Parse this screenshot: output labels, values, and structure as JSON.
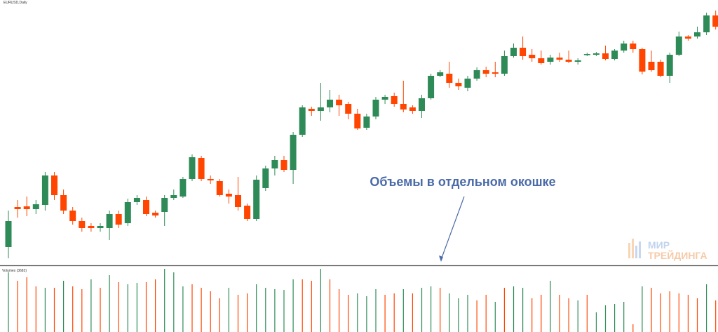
{
  "chart_data": [
    {
      "type": "candlestick",
      "title": "EURUSD,Daily",
      "annotation": "Объемы в отдельном окошке",
      "logo": [
        "МИР",
        "ТРЕЙДИНГА"
      ],
      "up_color": "#2e8b57",
      "down_color": "#ff4500",
      "ylim": [
        0,
        380
      ],
      "open": [
        28,
        85,
        86,
        82,
        88,
        130,
        102,
        80,
        65,
        58,
        55,
        55,
        75,
        62,
        92,
        95,
        77,
        78,
        98,
        100,
        125,
        155,
        125,
        122,
        104,
        102,
        87,
        68,
        112,
        140,
        152,
        138,
        188,
        225,
        222,
        227,
        238,
        232,
        218,
        198,
        214,
        238,
        243,
        232,
        227,
        222,
        240,
        272,
        275,
        262,
        255,
        268,
        280,
        277,
        275,
        300,
        312,
        302,
        297,
        292,
        298,
        295,
        292,
        302,
        302,
        304,
        296,
        308,
        318,
        310,
        292,
        292,
        272,
        302,
        328,
        328,
        334,
        358
      ],
      "close": [
        65,
        82,
        82,
        89,
        130,
        102,
        80,
        65,
        55,
        55,
        58,
        75,
        60,
        92,
        98,
        75,
        73,
        98,
        102,
        125,
        156,
        125,
        123,
        102,
        100,
        85,
        68,
        124,
        140,
        152,
        138,
        188,
        227,
        222,
        227,
        238,
        230,
        218,
        197,
        214,
        238,
        242,
        232,
        224,
        222,
        240,
        272,
        277,
        262,
        257,
        268,
        280,
        275,
        275,
        300,
        312,
        300,
        297,
        290,
        298,
        295,
        292,
        294,
        303,
        304,
        296,
        308,
        318,
        310,
        278,
        280,
        272,
        302,
        328,
        325,
        334,
        358,
        342
      ],
      "high": [
        80,
        95,
        100,
        95,
        135,
        135,
        110,
        85,
        70,
        62,
        62,
        80,
        80,
        97,
        102,
        100,
        80,
        102,
        110,
        128,
        160,
        158,
        130,
        125,
        110,
        128,
        90,
        130,
        144,
        158,
        158,
        192,
        230,
        228,
        262,
        252,
        245,
        235,
        225,
        218,
        242,
        245,
        248,
        265,
        230,
        245,
        275,
        280,
        292,
        268,
        272,
        284,
        285,
        292,
        308,
        318,
        328,
        310,
        308,
        302,
        305,
        308,
        297,
        305,
        306,
        315,
        310,
        322,
        322,
        312,
        308,
        295,
        305,
        335,
        330,
        342,
        362,
        365
      ],
      "low": [
        12,
        70,
        72,
        75,
        80,
        95,
        75,
        60,
        50,
        50,
        50,
        38,
        55,
        58,
        88,
        72,
        70,
        58,
        95,
        98,
        122,
        122,
        118,
        100,
        90,
        80,
        65,
        65,
        108,
        130,
        135,
        118,
        185,
        215,
        208,
        220,
        215,
        210,
        195,
        195,
        210,
        232,
        228,
        220,
        218,
        212,
        238,
        270,
        255,
        252,
        250,
        265,
        270,
        270,
        272,
        298,
        295,
        292,
        288,
        288,
        292,
        290,
        288,
        300,
        300,
        294,
        294,
        305,
        305,
        274,
        278,
        270,
        262,
        300,
        322,
        325,
        330,
        338
      ]
    },
    {
      "type": "bar",
      "title": "Volumes (3682)",
      "ylim": [
        0,
        90
      ],
      "values": [
        85,
        73,
        78,
        65,
        63,
        63,
        73,
        65,
        61,
        75,
        63,
        81,
        71,
        68,
        70,
        71,
        75,
        90,
        85,
        65,
        68,
        63,
        58,
        48,
        63,
        53,
        55,
        68,
        63,
        61,
        60,
        75,
        75,
        73,
        90,
        75,
        61,
        53,
        55,
        51,
        61,
        53,
        55,
        61,
        55,
        63,
        65,
        63,
        55,
        48,
        53,
        45,
        53,
        43,
        63,
        65,
        63,
        48,
        53,
        73,
        53,
        48,
        45,
        53,
        28,
        38,
        40,
        43,
        11,
        65,
        63,
        55,
        58,
        55,
        53,
        48,
        68,
        45
      ],
      "colors": [
        "#2e8b57",
        "#ff4500",
        "#ff4500",
        "#ff4500",
        "#2e8b57",
        "#ff4500",
        "#2e8b57",
        "#ff4500",
        "#ff4500",
        "#2e8b57",
        "#ff4500",
        "#2e8b57",
        "#ff4500",
        "#2e8b57",
        "#2e8b57",
        "#ff4500",
        "#ff4500",
        "#2e8b57",
        "#2e8b57",
        "#2e8b57",
        "#ff4500",
        "#ff4500",
        "#ff4500",
        "#ff4500",
        "#2e8b57",
        "#ff4500",
        "#ff4500",
        "#2e8b57",
        "#2e8b57",
        "#2e8b57",
        "#2e8b57",
        "#2e8b57",
        "#ff4500",
        "#ff4500",
        "#2e8b57",
        "#ff4500",
        "#ff4500",
        "#ff4500",
        "#2e8b57",
        "#2e8b57",
        "#2e8b57",
        "#ff4500",
        "#ff4500",
        "#2e8b57",
        "#ff4500",
        "#2e8b57",
        "#2e8b57",
        "#ff4500",
        "#2e8b57",
        "#2e8b57",
        "#2e8b57",
        "#ff4500",
        "#ff4500",
        "#2e8b57",
        "#ff4500",
        "#2e8b57",
        "#2e8b57",
        "#ff4500",
        "#ff4500",
        "#2e8b57",
        "#ff4500",
        "#ff4500",
        "#2e8b57",
        "#ff4500",
        "#2e8b57",
        "#2e8b57",
        "#2e8b57",
        "#2e8b57",
        "#ff4500",
        "#2e8b57",
        "#ff4500",
        "#ff4500",
        "#ff4500",
        "#ff4500",
        "#ff4500",
        "#ff4500",
        "#2e8b57",
        "#ff4500"
      ]
    }
  ]
}
